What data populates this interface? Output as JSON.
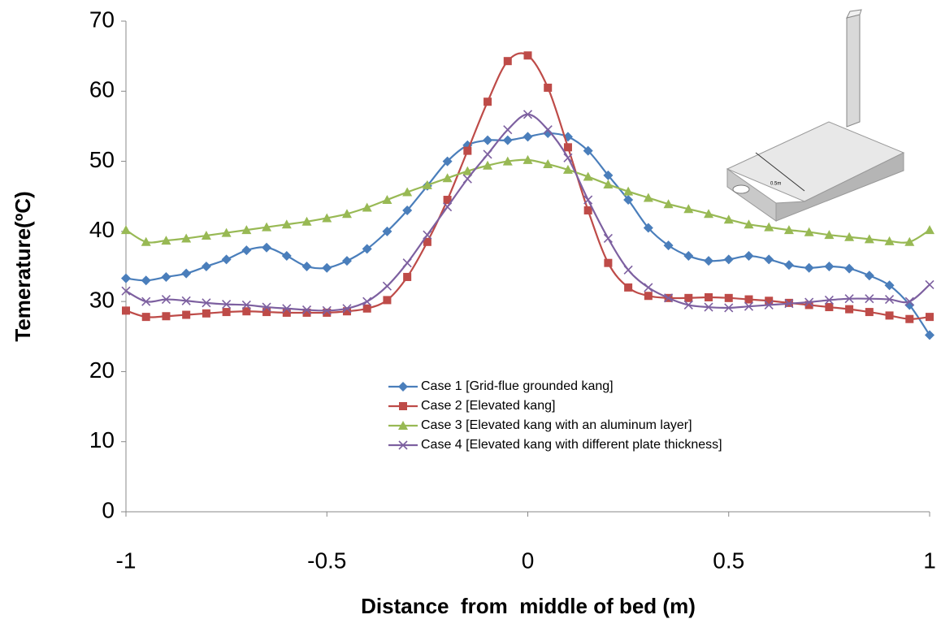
{
  "chart_data": {
    "type": "line",
    "xlabel": "Distance  from  middle of bed (m)",
    "ylabel": "Temerature(ºC)",
    "x": [
      -1,
      -0.95,
      -0.9,
      -0.85,
      -0.8,
      -0.75,
      -0.7,
      -0.65,
      -0.6,
      -0.55,
      -0.5,
      -0.45,
      -0.4,
      -0.35,
      -0.3,
      -0.25,
      -0.2,
      -0.15,
      -0.1,
      -0.05,
      0,
      0.05,
      0.1,
      0.15,
      0.2,
      0.25,
      0.3,
      0.35,
      0.4,
      0.45,
      0.5,
      0.55,
      0.6,
      0.65,
      0.7,
      0.75,
      0.8,
      0.85,
      0.9,
      0.95,
      1
    ],
    "series": [
      {
        "name": "Case 1 [Grid-flue grounded kang]",
        "color": "#4a7ebb",
        "marker": "diamond",
        "values": [
          33.3,
          33,
          33.5,
          34,
          35,
          36,
          37.3,
          37.7,
          36.5,
          35,
          34.8,
          35.8,
          37.5,
          40,
          43,
          46.5,
          50,
          52.3,
          53,
          53,
          53.5,
          54,
          53.5,
          51.5,
          48,
          44.5,
          40.5,
          38,
          36.5,
          35.8,
          36,
          36.5,
          36,
          35.2,
          34.8,
          35,
          34.7,
          33.7,
          32.3,
          29.5,
          25.2
        ]
      },
      {
        "name": "Case 2 [Elevated kang]",
        "color": "#be4b48",
        "marker": "square",
        "values": [
          28.7,
          27.8,
          27.9,
          28.1,
          28.3,
          28.5,
          28.6,
          28.5,
          28.4,
          28.4,
          28.4,
          28.6,
          29,
          30.2,
          33.5,
          38.5,
          44.5,
          51.5,
          58.5,
          64.3,
          65.1,
          60.5,
          52,
          43,
          35.5,
          32,
          30.8,
          30.5,
          30.5,
          30.6,
          30.5,
          30.3,
          30.1,
          29.8,
          29.5,
          29.2,
          28.9,
          28.5,
          28,
          27.5,
          27.8
        ]
      },
      {
        "name": "Case 3 [Elevated kang with an aluminum layer]",
        "color": "#98b954",
        "marker": "triangle",
        "values": [
          40.2,
          38.5,
          38.7,
          39,
          39.4,
          39.8,
          40.2,
          40.6,
          41,
          41.4,
          41.9,
          42.5,
          43.4,
          44.5,
          45.6,
          46.6,
          47.6,
          48.6,
          49.4,
          50,
          50.2,
          49.6,
          48.8,
          47.8,
          46.7,
          45.7,
          44.8,
          43.9,
          43.2,
          42.5,
          41.7,
          41,
          40.6,
          40.2,
          39.9,
          39.5,
          39.2,
          38.9,
          38.6,
          38.5,
          40.2
        ]
      },
      {
        "name": "Case 4 [Elevated kang with different plate thickness]",
        "color": "#7d60a0",
        "marker": "x",
        "values": [
          31.5,
          30,
          30.3,
          30.1,
          29.8,
          29.6,
          29.5,
          29.2,
          29,
          28.8,
          28.7,
          29,
          30,
          32.2,
          35.5,
          39.5,
          43.5,
          47.5,
          51,
          54.5,
          56.7,
          54.5,
          50.5,
          44.5,
          39,
          34.5,
          32,
          30.5,
          29.5,
          29.2,
          29.1,
          29.3,
          29.5,
          29.7,
          29.9,
          30.2,
          30.4,
          30.4,
          30.3,
          30,
          32.4
        ]
      }
    ],
    "xlim": [
      -1,
      1
    ],
    "xticks": [
      -1,
      -0.5,
      0,
      0.5,
      1
    ],
    "ylim": [
      0,
      70
    ],
    "yticks": [
      0,
      10,
      20,
      30,
      40,
      50,
      60,
      70
    ],
    "inset_label": "0.5m"
  }
}
